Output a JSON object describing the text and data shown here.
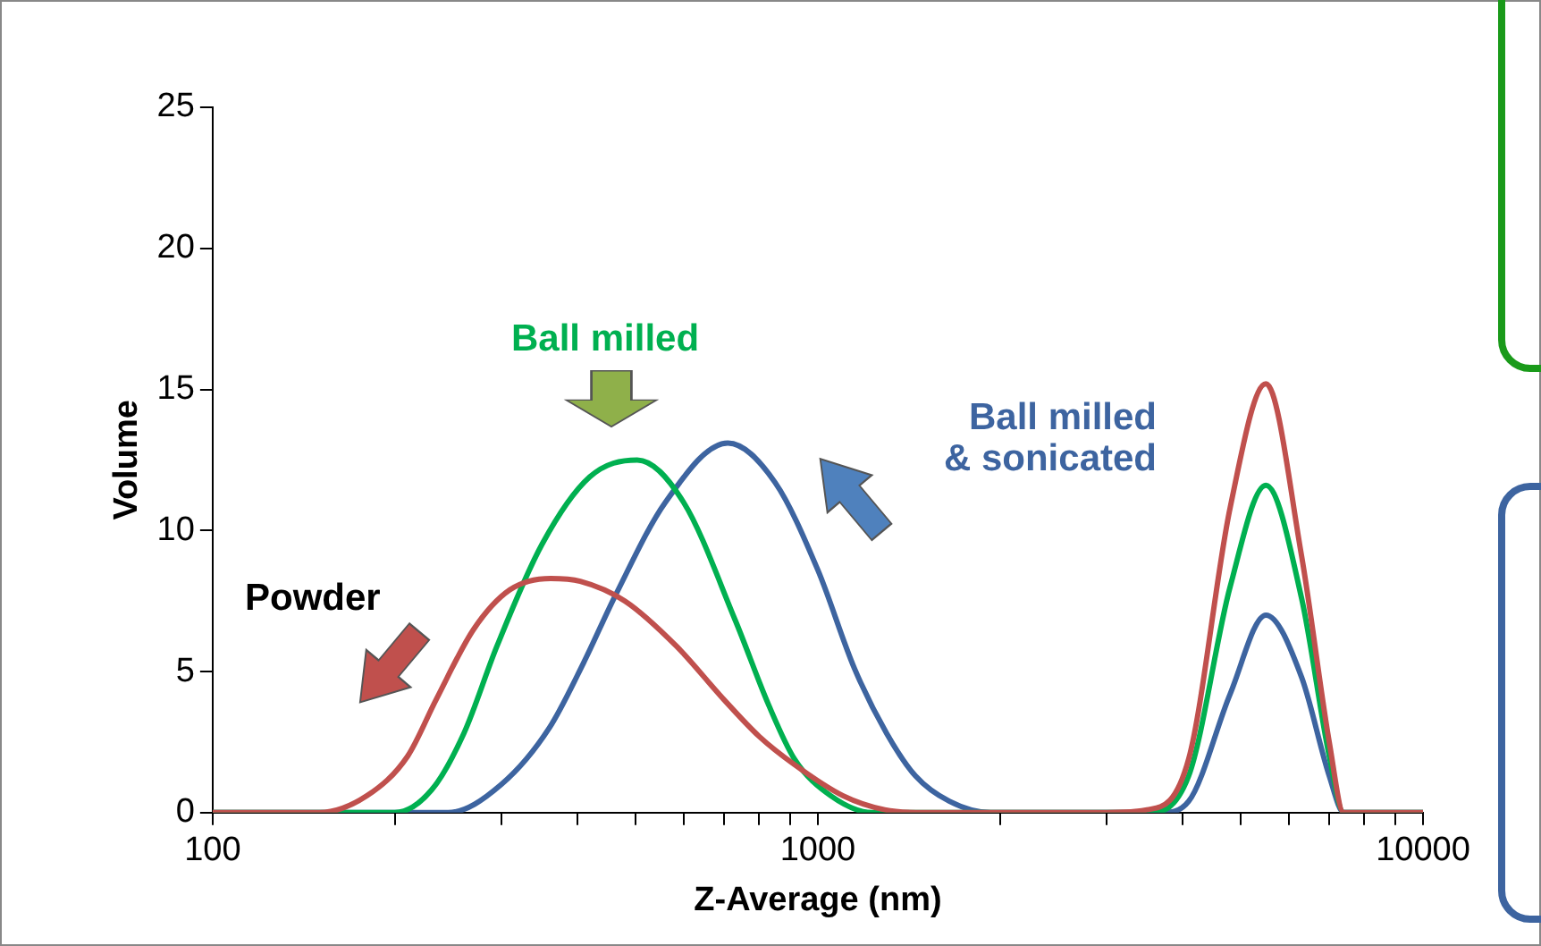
{
  "chart_data": {
    "type": "line",
    "xlabel": "Z-Average (nm)",
    "ylabel": "Volume",
    "log": "x",
    "grid": false,
    "legend": false,
    "marker": "none",
    "line_style": "solid",
    "xlim": [
      100,
      10000
    ],
    "ylim": [
      0,
      25
    ],
    "xticks": [
      100,
      {
        "value": 200,
        "label": null
      },
      {
        "value": 300,
        "label": null
      },
      {
        "value": 400,
        "label": null
      },
      {
        "value": 500,
        "label": null
      },
      {
        "value": 600,
        "label": null
      },
      {
        "value": 700,
        "label": null
      },
      {
        "value": 800,
        "label": null
      },
      {
        "value": 900,
        "label": null
      },
      1000,
      {
        "value": 2000,
        "label": null
      },
      {
        "value": 3000,
        "label": null
      },
      {
        "value": 4000,
        "label": null
      },
      {
        "value": 5000,
        "label": null
      },
      {
        "value": 6000,
        "label": null
      },
      {
        "value": 7000,
        "label": null
      },
      {
        "value": 8000,
        "label": null
      },
      {
        "value": 9000,
        "label": null
      },
      10000
    ],
    "yticks": [
      0,
      5,
      10,
      15,
      20,
      25
    ],
    "series": [
      {
        "name": "Powder",
        "color": "#c0504d",
        "x": [
          100,
          150,
          180,
          210,
          234,
          270,
          310,
          362,
          405,
          480,
          584,
          700,
          800,
          915,
          1100,
          1290,
          1500,
          3000,
          3500,
          4100,
          4800,
          5500,
          6300,
          7000,
          7400,
          10000
        ],
        "values": [
          0,
          0,
          0.6,
          2,
          4,
          6.5,
          7.9,
          8.3,
          8.2,
          7.5,
          5.9,
          4,
          2.7,
          1.7,
          0.6,
          0.1,
          0,
          0,
          0.1,
          1.9,
          10.8,
          15.2,
          9.1,
          2.5,
          0,
          0
        ]
      },
      {
        "name": "Ball milled",
        "color": "#00b050",
        "x": [
          100,
          200,
          230,
          260,
          295,
          350,
          420,
          503,
          600,
          731,
          830,
          915,
          1050,
          1230,
          3500,
          4100,
          4800,
          5500,
          6300,
          7000,
          7400,
          10000
        ],
        "values": [
          0,
          0,
          0.8,
          2.8,
          5.9,
          9.5,
          11.9,
          12.5,
          11,
          6.8,
          3.8,
          1.9,
          0.6,
          0,
          0,
          1.3,
          8,
          11.6,
          7.6,
          2,
          0,
          0
        ]
      },
      {
        "name": "Ball milled\n& sonicated",
        "color": "#3d64a0",
        "x": [
          100,
          245,
          300,
          360,
          410,
          463,
          560,
          710,
          850,
          1000,
          1150,
          1300,
          1450,
          1650,
          1930,
          3700,
          4100,
          4800,
          5500,
          6300,
          7000,
          7400,
          10000
        ],
        "values": [
          0,
          0,
          1,
          3,
          5.3,
          7.7,
          11,
          13.1,
          11.7,
          8.6,
          5.1,
          2.8,
          1.3,
          0.4,
          0,
          0,
          0.4,
          4.2,
          7,
          4.8,
          1.3,
          0,
          0
        ]
      }
    ]
  }
}
